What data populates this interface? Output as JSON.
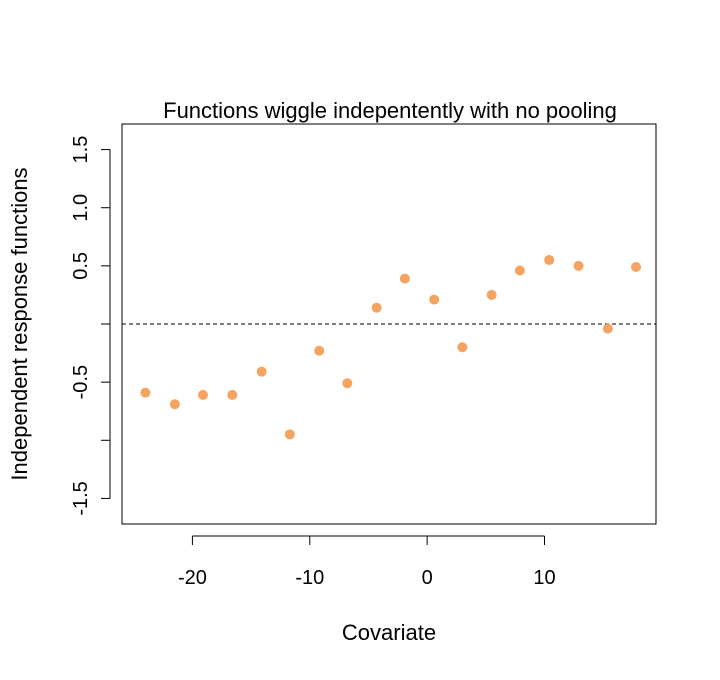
{
  "chart_data": {
    "type": "scatter",
    "title": "Functions wiggle indepentently with no pooling",
    "xlabel": "Covariate",
    "ylabel": "Independent response functions",
    "xlim": [
      -26,
      19.5
    ],
    "ylim": [
      -1.72,
      1.72
    ],
    "x_ticks": [
      -20,
      -10,
      0,
      10
    ],
    "x_tick_labels": [
      "-20",
      "-10",
      "0",
      "10"
    ],
    "y_ticks": [
      -1.5,
      -1.0,
      -0.5,
      0.0,
      0.5,
      1.0,
      1.5
    ],
    "y_tick_labels": [
      "-1.5",
      "",
      "-0.5",
      "",
      "0.5",
      "1.0",
      "1.5"
    ],
    "reference_line": {
      "y": 0,
      "style": "dashed"
    },
    "point_color": "#f4a460",
    "x": [
      -24.0,
      -21.5,
      -19.1,
      -16.6,
      -14.1,
      -11.7,
      -9.2,
      -6.8,
      -4.3,
      -1.9,
      0.6,
      3.0,
      5.5,
      7.9,
      10.4,
      12.9,
      15.4,
      17.8
    ],
    "y": [
      -0.59,
      -0.69,
      -0.61,
      -0.61,
      -0.41,
      -0.95,
      -0.23,
      -0.51,
      0.14,
      0.39,
      0.21,
      -0.2,
      0.25,
      0.46,
      0.55,
      0.5,
      -0.04,
      0.49
    ]
  }
}
